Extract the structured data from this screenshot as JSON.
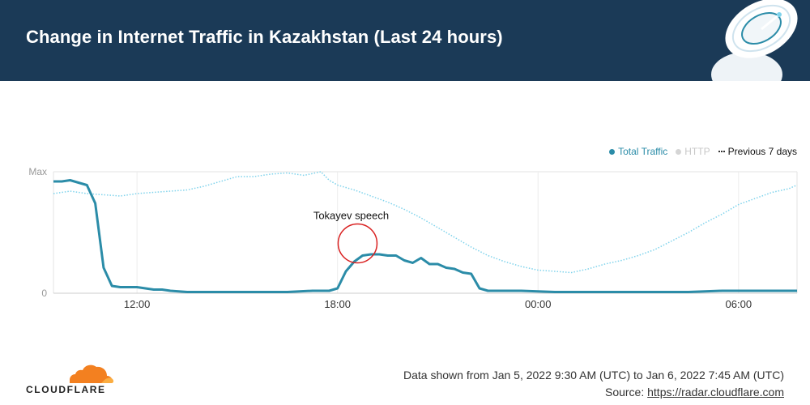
{
  "header": {
    "title": "Change in Internet Traffic in Kazakhstan (Last 24 hours)"
  },
  "legend": {
    "total_traffic": "Total Traffic",
    "http": "HTTP",
    "previous": "Previous 7 days"
  },
  "colors": {
    "header_bg": "#1b3a57",
    "total_traffic": "#2b8ca8",
    "http": "#cfcfcf",
    "previous": "#7fd3ec",
    "annotation_circle": "#d92020",
    "cloudflare_orange": "#f38020"
  },
  "footer": {
    "data_range": "Data shown from Jan 5, 2022 9:30 AM (UTC) to Jan 6, 2022 7:45 AM (UTC)",
    "source_prefix": "Source: ",
    "source_link": "https://radar.cloudflare.com",
    "logo_text": "CLOUDFLARE"
  },
  "chart_data": {
    "type": "line",
    "ylabel": "",
    "y_tick_labels": [
      "Max",
      "0"
    ],
    "ylim": [
      0,
      100
    ],
    "x_tick_labels": [
      "12:00",
      "18:00",
      "00:00",
      "06:00"
    ],
    "x_tick_hours": [
      2.5,
      8.5,
      14.5,
      20.5
    ],
    "xlim_hours": [
      0,
      22.25
    ],
    "grid": true,
    "legend_position": "top-right",
    "annotation": {
      "text": "Tokayev speech",
      "x_hour": 9.1,
      "y": 37
    },
    "series": [
      {
        "name": "Total Traffic",
        "x": [
          0,
          0.25,
          0.5,
          0.75,
          1.0,
          1.25,
          1.5,
          1.75,
          2.0,
          2.25,
          2.5,
          2.75,
          3.0,
          3.25,
          3.5,
          4,
          5,
          6,
          7,
          7.75,
          8.0,
          8.25,
          8.5,
          8.75,
          9.0,
          9.25,
          9.5,
          9.75,
          10.0,
          10.25,
          10.5,
          10.75,
          11.0,
          11.25,
          11.5,
          11.75,
          12.0,
          12.25,
          12.5,
          12.75,
          13,
          14,
          15,
          16,
          17,
          18,
          19,
          20,
          21,
          22,
          22.25
        ],
        "values": [
          92,
          92,
          93,
          91,
          89,
          74,
          21,
          6,
          5,
          5,
          5,
          4,
          3,
          3,
          2,
          1,
          1,
          1,
          1,
          2,
          2,
          2,
          4,
          18,
          26,
          31,
          32,
          32,
          31,
          31,
          27,
          25,
          29,
          24,
          24,
          21,
          20,
          17,
          16,
          4,
          2,
          2,
          1,
          1,
          1,
          1,
          1,
          2,
          2,
          2,
          2
        ]
      },
      {
        "name": "Previous 7 days",
        "x": [
          0,
          0.5,
          1.0,
          1.5,
          2.0,
          2.5,
          3.0,
          3.5,
          4.0,
          4.5,
          5.0,
          5.5,
          6.0,
          6.5,
          7.0,
          7.5,
          8.0,
          8.25,
          8.5,
          9.0,
          9.5,
          10.0,
          10.5,
          11.0,
          11.5,
          12.0,
          12.5,
          13.0,
          13.5,
          14.0,
          14.5,
          15.0,
          15.5,
          16.0,
          16.5,
          17.0,
          17.5,
          18.0,
          18.5,
          19.0,
          19.5,
          20.0,
          20.5,
          21.0,
          21.5,
          22.0,
          22.25
        ],
        "values": [
          82,
          84,
          82,
          81,
          80,
          82,
          83,
          84,
          85,
          88,
          92,
          96,
          96,
          98,
          99,
          97,
          100,
          93,
          89,
          85,
          80,
          75,
          69,
          62,
          54,
          46,
          38,
          31,
          26,
          22,
          19,
          18,
          17,
          20,
          24,
          27,
          31,
          36,
          43,
          50,
          58,
          65,
          73,
          78,
          83,
          86,
          89
        ]
      }
    ]
  }
}
